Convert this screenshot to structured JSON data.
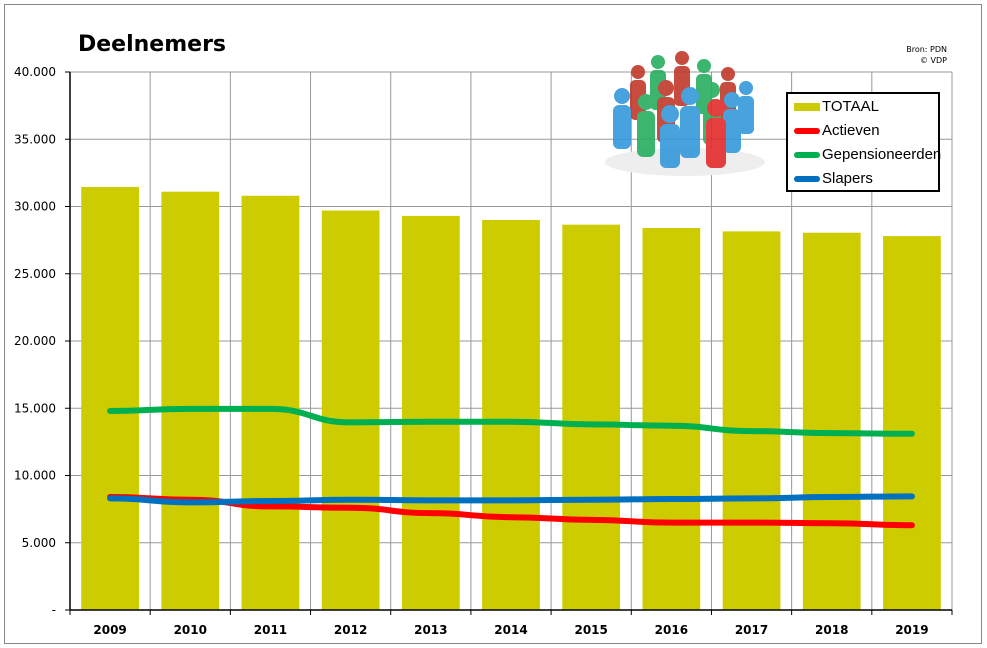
{
  "chart_data": {
    "type": "bar",
    "title": "Deelnemers",
    "source_lines": [
      "Bron: PDN",
      "© VDP"
    ],
    "categories": [
      "2009",
      "2010",
      "2011",
      "2012",
      "2013",
      "2014",
      "2015",
      "2016",
      "2017",
      "2018",
      "2019"
    ],
    "ylim": [
      0,
      40000
    ],
    "yticks": [
      0,
      5000,
      10000,
      15000,
      20000,
      25000,
      30000,
      35000,
      40000
    ],
    "ytick_labels": [
      "-",
      "5.000",
      "10.000",
      "15.000",
      "20.000",
      "25.000",
      "30.000",
      "35.000",
      "40.000"
    ],
    "grid": true,
    "legend_position": "top-right",
    "series": [
      {
        "name": "TOTAAL",
        "kind": "bar",
        "color": "#cccc00",
        "values": [
          31450,
          31100,
          30800,
          29700,
          29300,
          29000,
          28650,
          28400,
          28150,
          28050,
          27800
        ]
      },
      {
        "name": "Actieven",
        "kind": "line",
        "color": "#ff0000",
        "values": [
          8400,
          8200,
          7700,
          7600,
          7200,
          6900,
          6700,
          6500,
          6500,
          6450,
          6300
        ]
      },
      {
        "name": "Gepensioneerden",
        "kind": "line",
        "color": "#00b050",
        "values": [
          14800,
          14950,
          14950,
          13950,
          14000,
          14000,
          13800,
          13700,
          13300,
          13150,
          13100
        ]
      },
      {
        "name": "Slapers",
        "kind": "line",
        "color": "#0070c0",
        "values": [
          8300,
          8000,
          8100,
          8200,
          8150,
          8150,
          8200,
          8250,
          8300,
          8400,
          8450
        ]
      }
    ]
  }
}
